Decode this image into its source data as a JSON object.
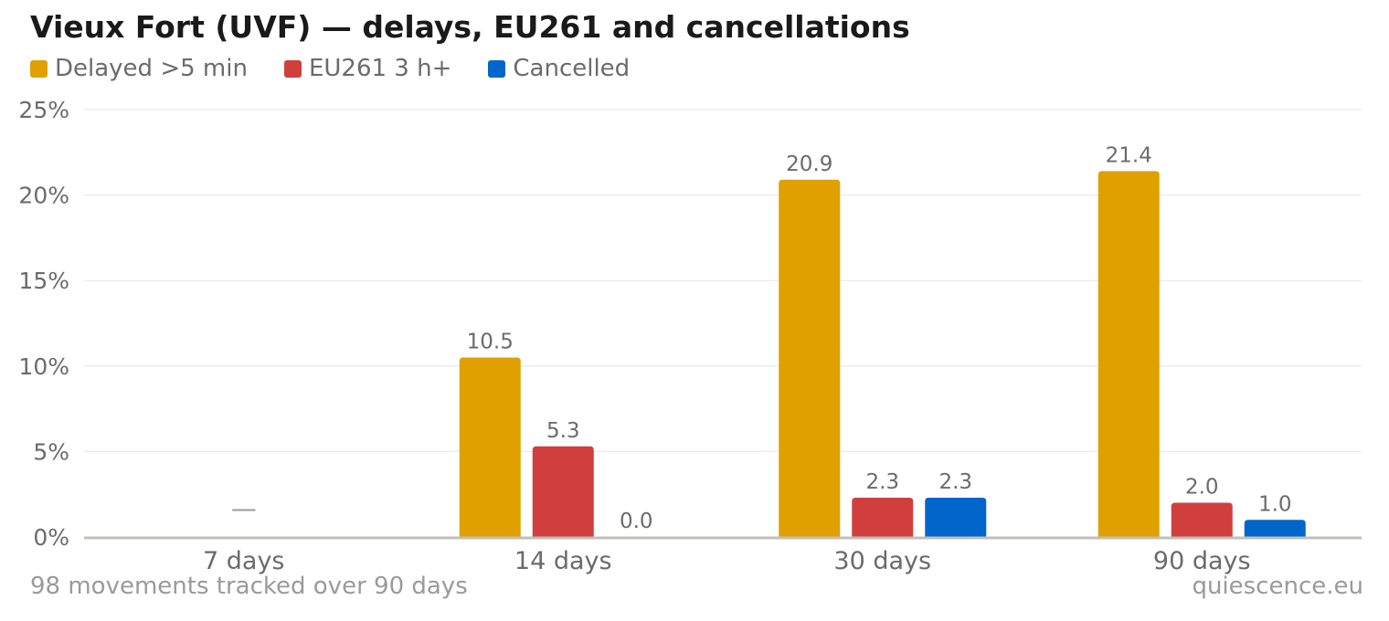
{
  "chart_data": {
    "type": "bar",
    "title": "Vieux Fort (UVF) — delays, EU261 and cancellations",
    "categories": [
      "7 days",
      "14 days",
      "30 days",
      "90 days"
    ],
    "series": [
      {
        "name": "Delayed >5 min",
        "color": "#e0a000",
        "values": [
          null,
          10.5,
          20.9,
          21.4
        ]
      },
      {
        "name": "EU261 3 h+",
        "color": "#d13e3e",
        "values": [
          null,
          5.3,
          2.3,
          2.0
        ]
      },
      {
        "name": "Cancelled",
        "color": "#0066cc",
        "values": [
          null,
          0.0,
          2.3,
          1.0
        ]
      }
    ],
    "ylim": [
      0,
      25
    ],
    "yticks": [
      0,
      5,
      10,
      15,
      20,
      25
    ],
    "ytick_labels": [
      "0%",
      "5%",
      "10%",
      "15%",
      "20%",
      "25%"
    ],
    "no_data_marker": "—",
    "grid": true,
    "legend_position": "top-left"
  },
  "footer": {
    "note": "98 movements tracked over 90 days",
    "source": "quiescence.eu"
  },
  "colors": {
    "grid": "#e6e6e6",
    "baseline": "#c0c0b8",
    "axis_text": "#6b6b6b",
    "no_data_marker": "#999999"
  }
}
